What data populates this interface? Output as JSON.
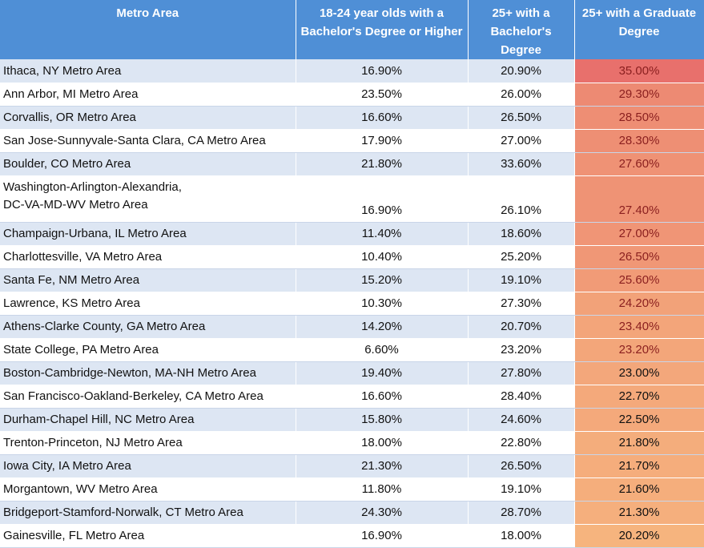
{
  "headers": {
    "metro": "Metro Area",
    "young_bachelor": "18-24 year olds with a Bachelor's Degree or Higher",
    "adult_bachelor": "25+ with a Bachelor's Degree",
    "graduate": "25+ with a Graduate Degree"
  },
  "heat_colors": {
    "high": "#e8706c",
    "low": "#f6b47e"
  },
  "rows": [
    {
      "metro": "Ithaca, NY Metro Area",
      "young": "16.90%",
      "adult": "20.90%",
      "grad": "35.00%",
      "grad_value": 35.0
    },
    {
      "metro": "Ann Arbor, MI Metro Area",
      "young": "23.50%",
      "adult": "26.00%",
      "grad": "29.30%",
      "grad_value": 29.3
    },
    {
      "metro": "Corvallis, OR Metro Area",
      "young": "16.60%",
      "adult": "26.50%",
      "grad": "28.50%",
      "grad_value": 28.5
    },
    {
      "metro": "San Jose-Sunnyvale-Santa Clara, CA Metro Area",
      "young": "17.90%",
      "adult": "27.00%",
      "grad": "28.30%",
      "grad_value": 28.3
    },
    {
      "metro": "Boulder, CO Metro Area",
      "young": "21.80%",
      "adult": "33.60%",
      "grad": "27.60%",
      "grad_value": 27.6
    },
    {
      "metro": "Washington-Arlington-Alexandria, DC-VA-MD-WV Metro Area",
      "metro_line1": "Washington-Arlington-Alexandria,",
      "metro_line2": "DC-VA-MD-WV Metro Area",
      "young": "16.90%",
      "adult": "26.10%",
      "grad": "27.40%",
      "grad_value": 27.4
    },
    {
      "metro": "Champaign-Urbana, IL Metro Area",
      "young": "11.40%",
      "adult": "18.60%",
      "grad": "27.00%",
      "grad_value": 27.0
    },
    {
      "metro": "Charlottesville, VA Metro Area",
      "young": "10.40%",
      "adult": "25.20%",
      "grad": "26.50%",
      "grad_value": 26.5
    },
    {
      "metro": "Santa Fe, NM Metro Area",
      "young": "15.20%",
      "adult": "19.10%",
      "grad": "25.60%",
      "grad_value": 25.6
    },
    {
      "metro": "Lawrence, KS Metro Area",
      "young": "10.30%",
      "adult": "27.30%",
      "grad": "24.20%",
      "grad_value": 24.2
    },
    {
      "metro": "Athens-Clarke County, GA Metro Area",
      "young": "14.20%",
      "adult": "20.70%",
      "grad": "23.40%",
      "grad_value": 23.4
    },
    {
      "metro": "State College, PA Metro Area",
      "young": "6.60%",
      "adult": "23.20%",
      "grad": "23.20%",
      "grad_value": 23.2
    },
    {
      "metro": "Boston-Cambridge-Newton, MA-NH Metro Area",
      "young": "19.40%",
      "adult": "27.80%",
      "grad": "23.00%",
      "grad_value": 23.0
    },
    {
      "metro": "San Francisco-Oakland-Berkeley, CA Metro Area",
      "young": "16.60%",
      "adult": "28.40%",
      "grad": "22.70%",
      "grad_value": 22.7
    },
    {
      "metro": "Durham-Chapel Hill, NC Metro Area",
      "young": "15.80%",
      "adult": "24.60%",
      "grad": "22.50%",
      "grad_value": 22.5
    },
    {
      "metro": "Trenton-Princeton, NJ Metro Area",
      "young": "18.00%",
      "adult": "22.80%",
      "grad": "21.80%",
      "grad_value": 21.8
    },
    {
      "metro": "Iowa City, IA Metro Area",
      "young": "21.30%",
      "adult": "26.50%",
      "grad": "21.70%",
      "grad_value": 21.7
    },
    {
      "metro": "Morgantown, WV Metro Area",
      "young": "11.80%",
      "adult": "19.10%",
      "grad": "21.60%",
      "grad_value": 21.6
    },
    {
      "metro": "Bridgeport-Stamford-Norwalk, CT Metro Area",
      "young": "24.30%",
      "adult": "28.70%",
      "grad": "21.30%",
      "grad_value": 21.3
    },
    {
      "metro": "Gainesville, FL Metro Area",
      "young": "16.90%",
      "adult": "18.00%",
      "grad": "20.20%",
      "grad_value": 20.2
    }
  ]
}
